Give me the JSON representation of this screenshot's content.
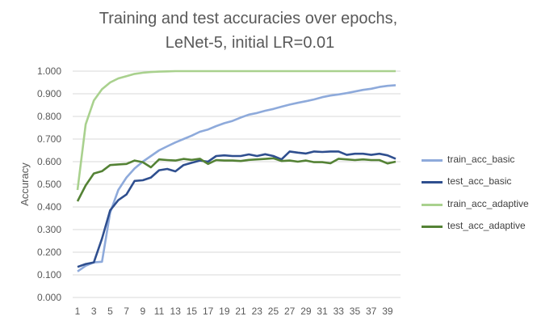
{
  "chart_data": {
    "type": "line",
    "title_lines": [
      "Training and test accuracies over epochs,",
      "LeNet-5, initial LR=0.01"
    ],
    "xlabel": "",
    "ylabel": "Accuracy",
    "ylim": [
      0,
      1
    ],
    "yticks": [
      "0.000",
      "0.100",
      "0.200",
      "0.300",
      "0.400",
      "0.500",
      "0.600",
      "0.700",
      "0.800",
      "0.900",
      "1.000"
    ],
    "xticks": [
      "1",
      "3",
      "5",
      "7",
      "9",
      "11",
      "13",
      "15",
      "17",
      "19",
      "21",
      "23",
      "25",
      "27",
      "29",
      "31",
      "33",
      "35",
      "37",
      "39"
    ],
    "grid": "horizontal",
    "legend_position": "right",
    "x": [
      1,
      2,
      3,
      4,
      5,
      6,
      7,
      8,
      9,
      10,
      11,
      12,
      13,
      14,
      15,
      16,
      17,
      18,
      19,
      20,
      21,
      22,
      23,
      24,
      25,
      26,
      27,
      28,
      29,
      30,
      31,
      32,
      33,
      34,
      35,
      36,
      37,
      38,
      39,
      40
    ],
    "series": [
      {
        "name": "train_acc_basic",
        "color": "#8eaadb",
        "values": [
          0.115,
          0.14,
          0.155,
          0.158,
          0.375,
          0.475,
          0.53,
          0.57,
          0.6,
          0.625,
          0.65,
          0.668,
          0.685,
          0.7,
          0.715,
          0.732,
          0.742,
          0.757,
          0.77,
          0.78,
          0.795,
          0.808,
          0.815,
          0.825,
          0.833,
          0.843,
          0.852,
          0.86,
          0.867,
          0.875,
          0.885,
          0.892,
          0.897,
          0.903,
          0.91,
          0.917,
          0.922,
          0.93,
          0.935,
          0.938
        ]
      },
      {
        "name": "test_acc_basic",
        "color": "#2f4f8f",
        "values": [
          0.135,
          0.148,
          0.155,
          0.26,
          0.385,
          0.43,
          0.455,
          0.515,
          0.518,
          0.53,
          0.562,
          0.568,
          0.557,
          0.585,
          0.595,
          0.605,
          0.6,
          0.625,
          0.628,
          0.625,
          0.625,
          0.632,
          0.625,
          0.633,
          0.625,
          0.61,
          0.645,
          0.64,
          0.636,
          0.645,
          0.643,
          0.645,
          0.645,
          0.63,
          0.635,
          0.635,
          0.63,
          0.635,
          0.628,
          0.613
        ]
      },
      {
        "name": "train_acc_adaptive",
        "color": "#a9d18e",
        "values": [
          0.475,
          0.765,
          0.87,
          0.92,
          0.95,
          0.968,
          0.978,
          0.988,
          0.993,
          0.996,
          0.998,
          0.999,
          1.0,
          1.0,
          1.0,
          1.0,
          1.0,
          1.0,
          1.0,
          1.0,
          1.0,
          1.0,
          1.0,
          1.0,
          1.0,
          1.0,
          1.0,
          1.0,
          1.0,
          1.0,
          1.0,
          1.0,
          1.0,
          1.0,
          1.0,
          1.0,
          1.0,
          1.0,
          1.0,
          1.0
        ]
      },
      {
        "name": "test_acc_adaptive",
        "color": "#548235",
        "values": [
          0.425,
          0.495,
          0.548,
          0.558,
          0.585,
          0.588,
          0.59,
          0.605,
          0.598,
          0.575,
          0.61,
          0.607,
          0.605,
          0.612,
          0.608,
          0.613,
          0.59,
          0.607,
          0.605,
          0.605,
          0.603,
          0.608,
          0.61,
          0.612,
          0.615,
          0.603,
          0.605,
          0.6,
          0.605,
          0.598,
          0.598,
          0.593,
          0.613,
          0.61,
          0.607,
          0.61,
          0.607,
          0.607,
          0.592,
          0.6
        ]
      }
    ]
  }
}
